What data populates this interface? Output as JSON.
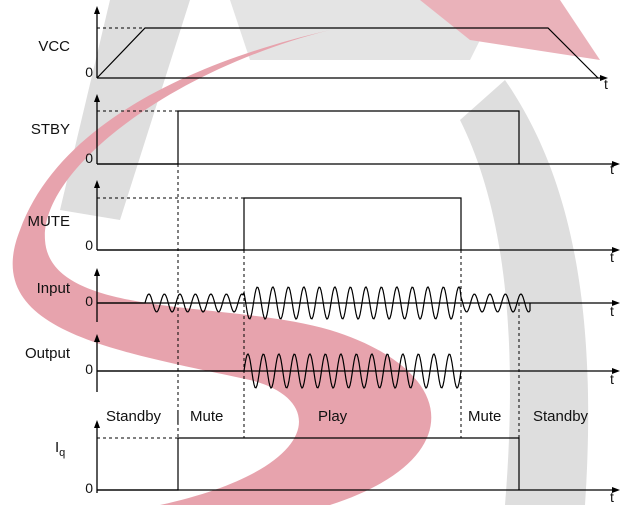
{
  "signals": [
    {
      "id": "vcc",
      "label": "VCC",
      "zero": "0",
      "time": "t"
    },
    {
      "id": "stby",
      "label": "STBY",
      "zero": "0",
      "time": "t"
    },
    {
      "id": "mute",
      "label": "MUTE",
      "zero": "0",
      "time": "t"
    },
    {
      "id": "input",
      "label": "Input",
      "zero": "0",
      "time": "t"
    },
    {
      "id": "output",
      "label": "Output",
      "zero": "0",
      "time": "t"
    },
    {
      "id": "iq",
      "label": "I",
      "label_sub": "q",
      "zero": "0",
      "time": "t"
    }
  ],
  "states": [
    "Standby",
    "Mute",
    "Play",
    "Mute",
    "Standby"
  ],
  "watermark": {
    "colors": [
      "#dcdcdc",
      "#e88c96"
    ]
  }
}
